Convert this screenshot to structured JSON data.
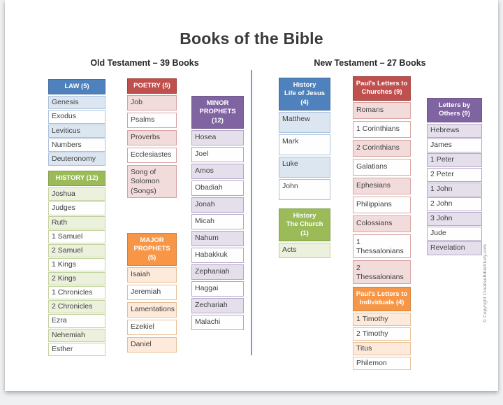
{
  "title": "Books of the Bible",
  "sections": {
    "old_testament": "Old Testament – 39 Books",
    "new_testament": "New Testament – 27 Books"
  },
  "copyright": "© Copyright CreativeBibleStudy.com",
  "colors": {
    "blue": {
      "header": "#4f81bd",
      "tint": "#dce6f1",
      "border": "#a9bfda"
    },
    "green": {
      "header": "#9bbb59",
      "tint": "#ebf1dd",
      "border": "#c3d39d"
    },
    "red": {
      "header": "#c0504d",
      "tint": "#f2dcdb",
      "border": "#d8a3a1"
    },
    "orange": {
      "header": "#f79646",
      "tint": "#fdeada",
      "border": "#eabf95"
    },
    "purple": {
      "header": "#8064a2",
      "tint": "#e5dfec",
      "border": "#b5a6c9"
    }
  },
  "groups": [
    {
      "id": "law",
      "color": "blue",
      "label": "LAW (5)",
      "books": [
        "Genesis",
        "Exodus",
        "Leviticus",
        "Numbers",
        "Deuteronomy"
      ]
    },
    {
      "id": "history-ot",
      "color": "green",
      "label": "HISTORY (12)",
      "books": [
        "Joshua",
        "Judges",
        "Ruth",
        "1 Samuel",
        "2 Samuel",
        "1 Kings",
        "2 Kings",
        "1 Chronicles",
        "2 Chronicles",
        "Ezra",
        "Nehemiah",
        "Esther"
      ]
    },
    {
      "id": "poetry",
      "color": "red",
      "label": "POETRY (5)",
      "books": [
        "Job",
        "Psalms",
        "Proverbs",
        "Ecclesiastes",
        "Song of Solomon (Songs)"
      ]
    },
    {
      "id": "major",
      "color": "orange",
      "label": "MAJOR\nPROPHETS (5)",
      "books": [
        "Isaiah",
        "Jeremiah",
        "Lamentations",
        "Ezekiel",
        "Daniel"
      ]
    },
    {
      "id": "minor",
      "color": "purple",
      "label": "MINOR\nPROPHETS\n(12)",
      "books": [
        "Hosea",
        "Joel",
        "Amos",
        "Obadiah",
        "Jonah",
        "Micah",
        "Nahum",
        "Habakkuk",
        "Zephaniah",
        "Haggai",
        "Zechariah",
        "Malachi"
      ]
    },
    {
      "id": "jesus",
      "color": "blue",
      "label": "History\nLife of Jesus\n(4)",
      "books": [
        "Matthew",
        "Mark",
        "Luke",
        "John"
      ]
    },
    {
      "id": "church",
      "color": "green",
      "label": "History\nThe Church\n(1)",
      "books": [
        "Acts"
      ]
    },
    {
      "id": "churches",
      "color": "red",
      "label": "Paul's Letters to\nChurches (9)",
      "books": [
        "Romans",
        "1 Corinthians",
        "2 Corinthians",
        "Galatians",
        "Ephesians",
        "Philippians",
        "Colossians",
        "1 Thessalonians",
        "2 Thessalonians"
      ]
    },
    {
      "id": "individuals",
      "color": "orange",
      "label": "Paul's Letters to\nIndividuals (4)",
      "books": [
        "1 Timothy",
        "2 Timothy",
        "Titus",
        "Philemon"
      ]
    },
    {
      "id": "others",
      "color": "purple",
      "label": "Letters by\nOthers (9)",
      "books": [
        "Hebrews",
        "James",
        "1 Peter",
        "2 Peter",
        "1 John",
        "2 John",
        "3 John",
        "Jude",
        "Revelation"
      ]
    }
  ]
}
